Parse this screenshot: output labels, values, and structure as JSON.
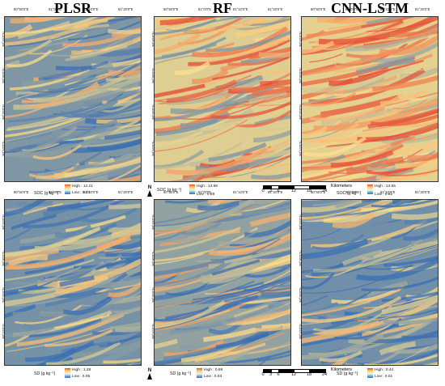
{
  "titles": [
    "PLSR",
    "RF",
    "CNN-LSTM"
  ],
  "longitudes": [
    "80°50'0\"E",
    "81°0'0\"E",
    "81°10'0\"E",
    "81°20'0\"E"
  ],
  "latitudes": [
    "38°40'0\"N",
    "38°30'0\"N",
    "38°20'0\"N",
    "38°10'0\"N"
  ],
  "soc_legend": {
    "quantity": "SOC (g kg⁻¹)",
    "plsr": {
      "high": "High : 12.21",
      "low": "Low : 0.33"
    },
    "rf": {
      "high": "High : 13.98",
      "low": "Low : 0.59"
    },
    "cnn_lstm": {
      "high": "High : 13.65",
      "low": "Low : 0.82"
    }
  },
  "sd_legend": {
    "quantity": "SD (g kg⁻¹)",
    "plsr": {
      "high": "High : 1.28",
      "low": "Low : 0.05"
    },
    "rf": {
      "high": "High : 0.69",
      "low": "Low : 0.03"
    },
    "cnn_lstm": {
      "high": "High : 0.44",
      "low": "Low : 0.01"
    }
  },
  "north_label": "N",
  "scale_bar": {
    "ticks": [
      "0",
      "3",
      "6",
      "12",
      "18",
      "24"
    ],
    "unit": "Kilometers"
  },
  "colors": {
    "high": "#e34a33",
    "mid": "#fee08b",
    "low": "#3a6fb3"
  }
}
